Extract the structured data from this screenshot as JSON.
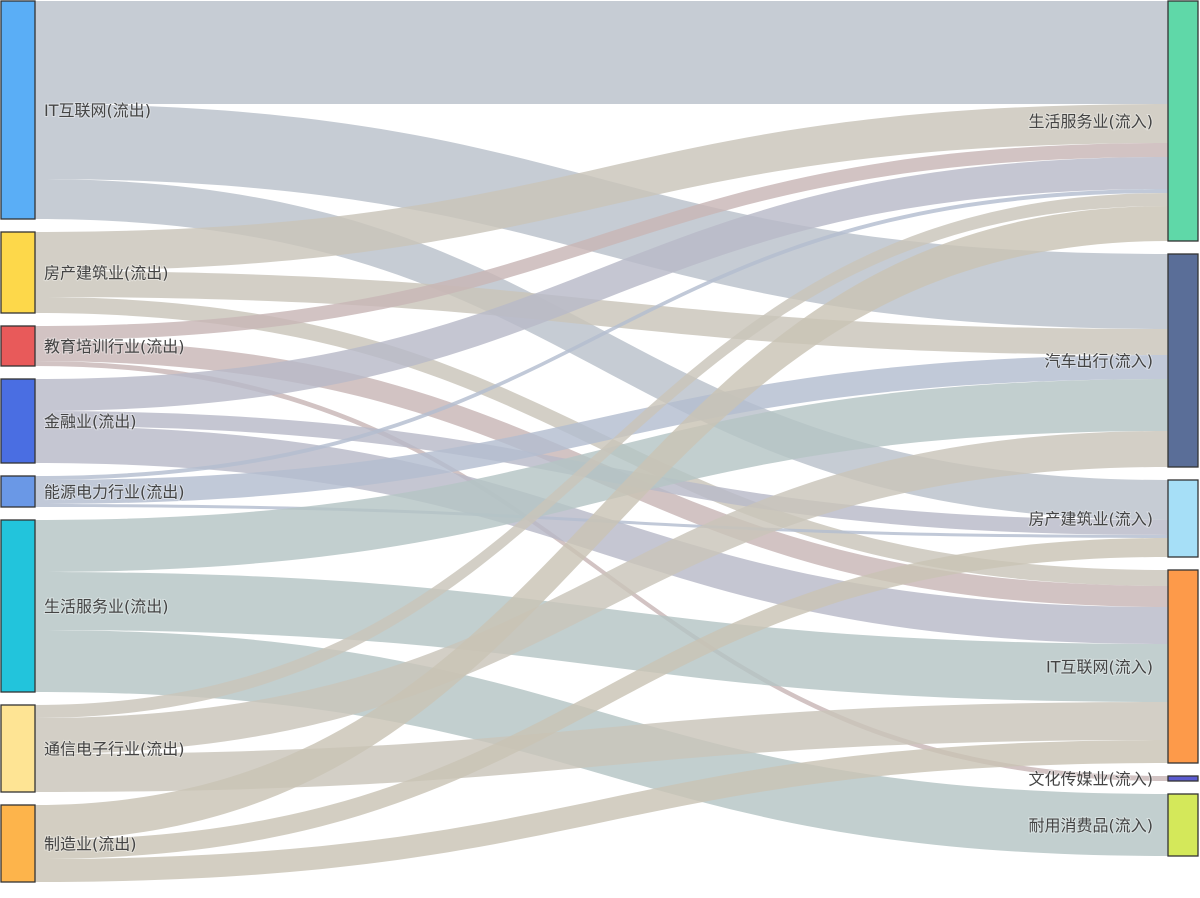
{
  "chart_data": {
    "type": "sankey",
    "title": "",
    "sources": [
      {
        "name": "IT互联网(流出)",
        "color": "#5aaef6",
        "link_color": "#b9c1ca"
      },
      {
        "name": "房产建筑业(流出)",
        "color": "#fdd84a",
        "link_color": "#c9c5b9"
      },
      {
        "name": "教育培训行业(流出)",
        "color": "#e85a5a",
        "link_color": "#c8b6b6"
      },
      {
        "name": "金融业(流出)",
        "color": "#4a6ee2",
        "link_color": "#b8bac8"
      },
      {
        "name": "能源电力行业(流出)",
        "color": "#6a98e6",
        "link_color": "#b3bdd0"
      },
      {
        "name": "生活服务业(流出)",
        "color": "#22c4dc",
        "link_color": "#b5c4c5"
      },
      {
        "name": "通信电子行业(流出)",
        "color": "#fee494",
        "link_color": "#c9c5b9"
      },
      {
        "name": "制造业(流出)",
        "color": "#fdb44b",
        "link_color": "#c9c3b5"
      }
    ],
    "targets": [
      {
        "name": "生活服务业(流入)",
        "color": "#5fd8a8"
      },
      {
        "name": "汽车出行(流入)",
        "color": "#5a6e98"
      },
      {
        "name": "房产建筑业(流入)",
        "color": "#a6dff7"
      },
      {
        "name": "IT互联网(流入)",
        "color": "#fd9a4a"
      },
      {
        "name": "文化传媒业(流入)",
        "color": "#5b5bd0"
      },
      {
        "name": "耐用消费品(流入)",
        "color": "#d4e85a"
      }
    ],
    "links": [
      {
        "source": 0,
        "target": 0,
        "value": 103
      },
      {
        "source": 0,
        "target": 1,
        "value": 75
      },
      {
        "source": 0,
        "target": 2,
        "value": 40
      },
      {
        "source": 1,
        "target": 0,
        "value": 39
      },
      {
        "source": 1,
        "target": 1,
        "value": 26
      },
      {
        "source": 1,
        "target": 3,
        "value": 16
      },
      {
        "source": 2,
        "target": 0,
        "value": 14
      },
      {
        "source": 2,
        "target": 3,
        "value": 21
      },
      {
        "source": 2,
        "target": 4,
        "value": 5
      },
      {
        "source": 3,
        "target": 0,
        "value": 32
      },
      {
        "source": 3,
        "target": 2,
        "value": 15
      },
      {
        "source": 3,
        "target": 3,
        "value": 37
      },
      {
        "source": 4,
        "target": 0,
        "value": 4
      },
      {
        "source": 4,
        "target": 1,
        "value": 24
      },
      {
        "source": 4,
        "target": 2,
        "value": 3
      },
      {
        "source": 5,
        "target": 1,
        "value": 52
      },
      {
        "source": 5,
        "target": 3,
        "value": 58
      },
      {
        "source": 5,
        "target": 5,
        "value": 62
      },
      {
        "source": 6,
        "target": 0,
        "value": 13
      },
      {
        "source": 6,
        "target": 1,
        "value": 36
      },
      {
        "source": 6,
        "target": 3,
        "value": 38
      },
      {
        "source": 7,
        "target": 0,
        "value": 35
      },
      {
        "source": 7,
        "target": 2,
        "value": 19
      },
      {
        "source": 7,
        "target": 3,
        "value": 23
      }
    ]
  }
}
